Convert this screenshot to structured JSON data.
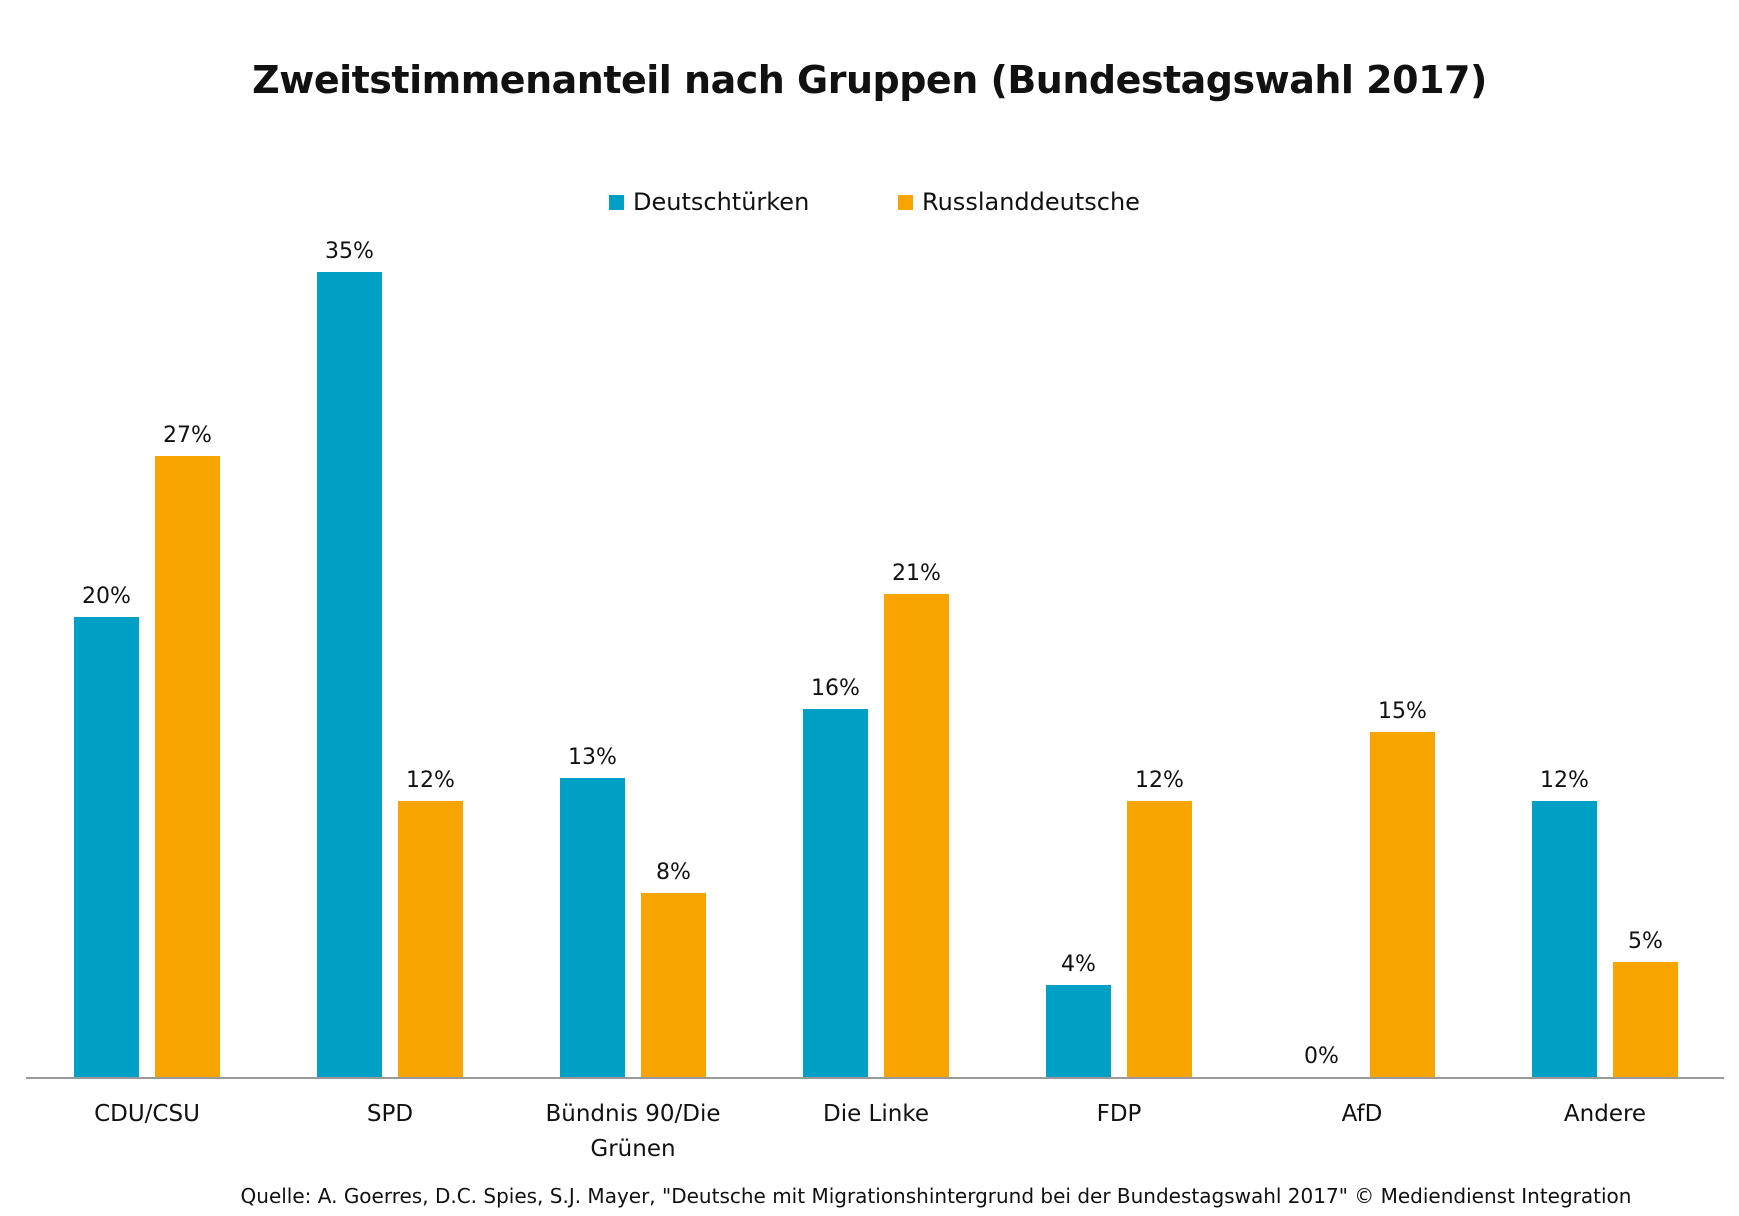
{
  "chart_data": {
    "type": "bar",
    "title": "Zweitstimmenanteil nach Gruppen (Bundestagswahl 2017)",
    "categories": [
      "CDU/CSU",
      "SPD",
      "Bündnis 90/Die Grünen",
      "Die Linke",
      "FDP",
      "AfD",
      "Andere"
    ],
    "category_lines": [
      [
        "CDU/CSU"
      ],
      [
        "SPD"
      ],
      [
        "Bündnis 90/Die",
        "Grünen"
      ],
      [
        "Die Linke"
      ],
      [
        "FDP"
      ],
      [
        "AfD"
      ],
      [
        "Andere"
      ]
    ],
    "series": [
      {
        "name": "Deutschtürken",
        "color": "#00a0c6",
        "values": [
          20,
          35,
          13,
          16,
          4,
          0,
          12
        ]
      },
      {
        "name": "Russlanddeutsche",
        "color": "#f7a300",
        "values": [
          27,
          12,
          8,
          21,
          12,
          15,
          5
        ]
      }
    ],
    "unit": "%",
    "ylim": [
      0,
      35
    ],
    "grid": false,
    "legend_placement": "top-center",
    "source": "Quelle: A. Goerres, D.C. Spies, S.J. Mayer, \"Deutsche mit Migrationshintergrund bei der Bundestagswahl 2017\" © Mediendienst Integration"
  }
}
